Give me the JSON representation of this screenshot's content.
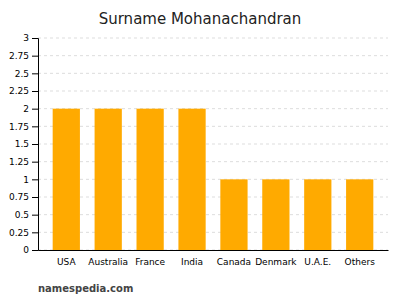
{
  "chart_data": {
    "type": "bar",
    "title": "Surname Mohanachandran",
    "categories": [
      "USA",
      "Australia",
      "France",
      "India",
      "Canada",
      "Denmark",
      "U.A.E.",
      "Others"
    ],
    "values": [
      2,
      2,
      2,
      2,
      1,
      1,
      1,
      1
    ],
    "color": "#FFAA00",
    "ylim": [
      0,
      3
    ],
    "yticks": [
      0,
      0.25,
      0.5,
      0.75,
      1,
      1.25,
      1.5,
      1.75,
      2,
      2.25,
      2.5,
      2.75,
      3
    ],
    "grid": true,
    "annotations": [
      "namespedia.com"
    ]
  }
}
